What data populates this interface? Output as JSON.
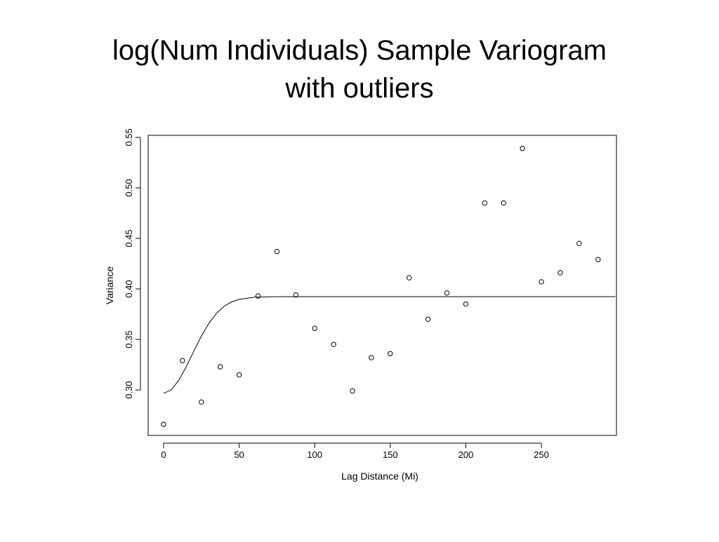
{
  "chart_data": {
    "type": "scatter",
    "title": [
      "log(Num Individuals) Sample Variogram",
      "with outliers"
    ],
    "x_label": "Lag Distance (Mi)",
    "y_label": "Variance",
    "x": [
      0,
      12.5,
      25,
      37.5,
      50,
      62.5,
      75,
      87.5,
      100,
      112.5,
      125,
      137.5,
      150,
      162.5,
      175,
      187.5,
      200,
      212.5,
      225,
      237.5,
      250,
      262.5,
      275,
      287.5
    ],
    "values": [
      0.266,
      0.329,
      0.288,
      0.323,
      0.315,
      0.393,
      0.437,
      0.394,
      0.361,
      0.345,
      0.299,
      0.332,
      0.336,
      0.411,
      0.37,
      0.396,
      0.385,
      0.485,
      0.485,
      0.539,
      0.407,
      0.416,
      0.445,
      0.429
    ],
    "fit": {
      "type": "line",
      "x": [
        0,
        5,
        10,
        15,
        20,
        25,
        30,
        35,
        40,
        45,
        50,
        60,
        70,
        80,
        299
      ],
      "values": [
        0.2966,
        0.3,
        0.3094,
        0.323,
        0.3384,
        0.3533,
        0.366,
        0.3758,
        0.3827,
        0.3871,
        0.3896,
        0.3918,
        0.3922,
        0.3923,
        0.3923
      ]
    },
    "xlim": [
      -10.2,
      299.7
    ],
    "ylim": [
      0.255,
      0.552
    ],
    "xticks": [
      0,
      50,
      100,
      150,
      200,
      250
    ],
    "yticks": [
      {
        "value": 0.3,
        "label": "0.30"
      },
      0.35,
      {
        "value": 0.4,
        "label": "0.40"
      },
      0.45,
      {
        "value": 0.5,
        "label": "0.50"
      },
      0.55
    ]
  }
}
